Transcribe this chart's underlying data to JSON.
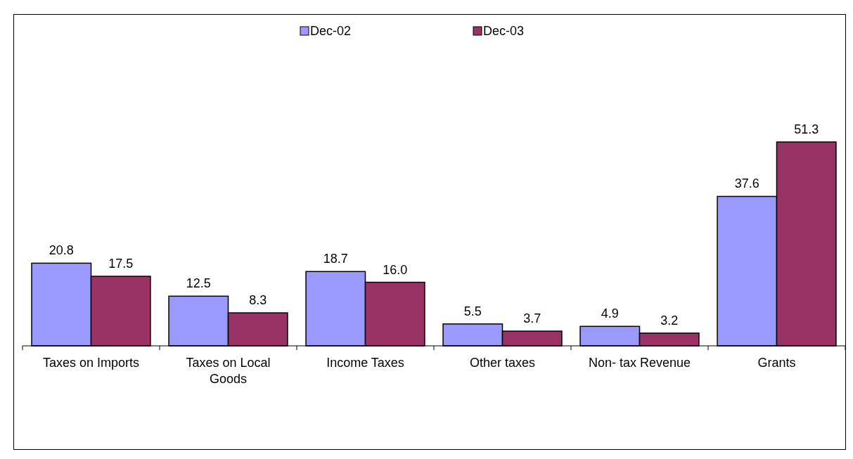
{
  "chart_data": {
    "type": "bar",
    "categories": [
      "Taxes on Imports",
      "Taxes on Local Goods",
      "Income Taxes",
      "Other taxes",
      "Non- tax Revenue",
      "Grants"
    ],
    "series": [
      {
        "name": "Dec-02",
        "color": "#9999ff",
        "values": [
          20.8,
          12.5,
          18.7,
          5.5,
          4.9,
          37.6
        ],
        "value_labels": [
          "20.8",
          "12.5",
          "18.7",
          "5.5",
          "4.9",
          "37.6"
        ]
      },
      {
        "name": "Dec-03",
        "color": "#993366",
        "values": [
          17.5,
          8.3,
          16.0,
          3.7,
          3.2,
          51.3
        ],
        "value_labels": [
          "17.5",
          "8.3",
          "16.0",
          "3.7",
          "3.2",
          "51.3"
        ]
      }
    ],
    "legend": "top"
  }
}
